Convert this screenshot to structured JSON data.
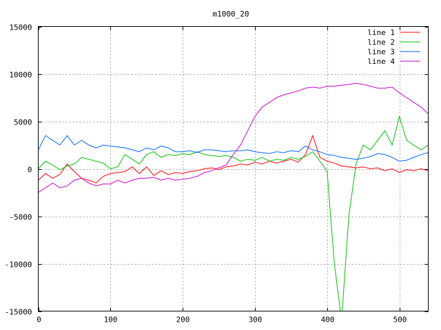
{
  "chart_data": {
    "type": "line",
    "title": "m1000_20",
    "xlabel": "",
    "ylabel": "",
    "xlim": [
      0,
      540
    ],
    "ylim": [
      -15000,
      15000
    ],
    "x_ticks": [
      0,
      100,
      200,
      300,
      400,
      500
    ],
    "y_ticks": [
      -15000,
      -10000,
      -5000,
      0,
      5000,
      10000,
      15000
    ],
    "grid": true,
    "legend_position": "top-right",
    "x": [
      0,
      10,
      20,
      30,
      40,
      50,
      60,
      70,
      80,
      90,
      100,
      110,
      120,
      130,
      140,
      150,
      160,
      170,
      180,
      190,
      200,
      210,
      220,
      230,
      240,
      250,
      260,
      270,
      280,
      290,
      300,
      310,
      320,
      330,
      340,
      350,
      360,
      370,
      380,
      390,
      400,
      410,
      420,
      430,
      440,
      450,
      460,
      470,
      480,
      490,
      500,
      510,
      520,
      530,
      540
    ],
    "series": [
      {
        "name": "line 1",
        "color": "#ff0000",
        "values": [
          -1200,
          -500,
          -1000,
          -600,
          500,
          -300,
          -1000,
          -1200,
          -1500,
          -800,
          -500,
          -400,
          -300,
          200,
          -500,
          200,
          -700,
          -200,
          -600,
          -400,
          -500,
          -300,
          -200,
          0,
          100,
          -100,
          200,
          300,
          500,
          400,
          700,
          500,
          800,
          600,
          800,
          1000,
          700,
          1500,
          3500,
          1200,
          800,
          600,
          300,
          200,
          100,
          200,
          0,
          100,
          -200,
          0,
          -400,
          -100,
          -200,
          0,
          -200
        ]
      },
      {
        "name": "line 2",
        "color": "#00c000",
        "values": [
          0,
          800,
          400,
          -100,
          300,
          500,
          1200,
          1000,
          800,
          600,
          0,
          200,
          1500,
          1000,
          500,
          1500,
          1800,
          1200,
          1500,
          1400,
          1600,
          1500,
          1800,
          1500,
          1400,
          1300,
          1400,
          1200,
          800,
          1000,
          900,
          1200,
          800,
          1000,
          900,
          1200,
          1000,
          1300,
          1800,
          800,
          -300,
          -10000,
          -16000,
          -5000,
          500,
          2500,
          2000,
          3000,
          4000,
          2500,
          5500,
          3000,
          2500,
          2000,
          2500
        ]
      },
      {
        "name": "line 3",
        "color": "#0066ff",
        "values": [
          2000,
          3500,
          3000,
          2500,
          3500,
          2500,
          3000,
          2500,
          2200,
          2500,
          2400,
          2300,
          2200,
          2000,
          1800,
          2200,
          2000,
          2400,
          2200,
          1800,
          1800,
          1900,
          1700,
          2000,
          2000,
          1900,
          1800,
          1900,
          1900,
          2000,
          1800,
          1700,
          1600,
          1800,
          1700,
          1900,
          1800,
          2400,
          2000,
          1800,
          1500,
          1400,
          1200,
          1100,
          1000,
          1100,
          1300,
          1600,
          1500,
          1200,
          800,
          900,
          1200,
          1500,
          1700
        ]
      },
      {
        "name": "line 4",
        "color": "#cc00cc",
        "values": [
          -2500,
          -2000,
          -1500,
          -2000,
          -1800,
          -1200,
          -1000,
          -1500,
          -1800,
          -1600,
          -1600,
          -1200,
          -1500,
          -1200,
          -1000,
          -1000,
          -900,
          -1200,
          -1000,
          -1200,
          -1100,
          -1000,
          -800,
          -400,
          -200,
          100,
          400,
          1500,
          2500,
          4000,
          5500,
          6500,
          7000,
          7500,
          7800,
          8000,
          8200,
          8500,
          8600,
          8500,
          8700,
          8700,
          8800,
          8900,
          9000,
          8900,
          8700,
          8500,
          8500,
          8600,
          8000,
          7500,
          7000,
          6500,
          5800
        ]
      }
    ]
  }
}
